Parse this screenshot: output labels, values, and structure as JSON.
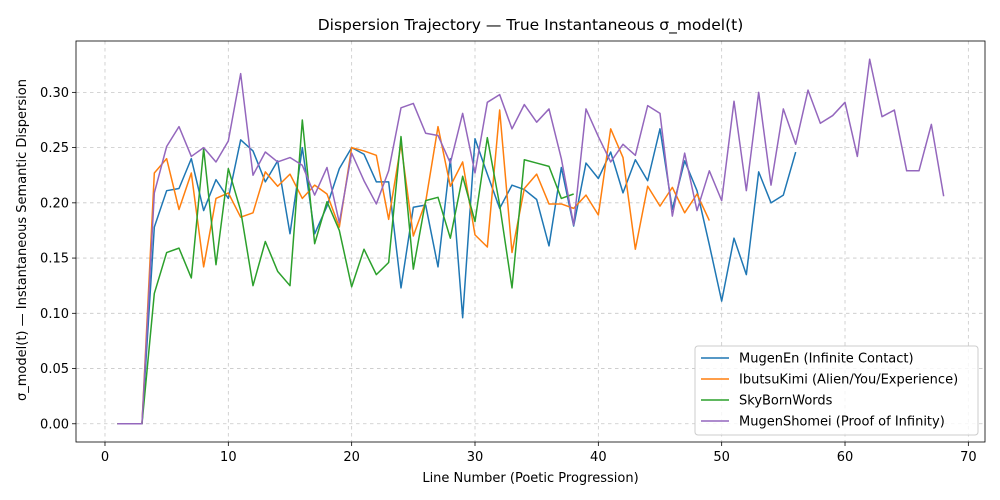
{
  "chart_data": {
    "type": "line",
    "title": "Dispersion Trajectory — True Instantaneous σ_model(t)",
    "xlabel": "Line Number (Poetic Progression)",
    "ylabel": "σ_model(t) — Instantaneous Semantic Dispersion",
    "xlim": [
      -2.35,
      71.35
    ],
    "ylim": [
      -0.0165,
      0.3465
    ],
    "xticks": [
      0,
      10,
      20,
      30,
      40,
      50,
      60,
      70
    ],
    "yticks": [
      0.0,
      0.05,
      0.1,
      0.15,
      0.2,
      0.25,
      0.3
    ],
    "ytick_labels": [
      "0.00",
      "0.05",
      "0.10",
      "0.15",
      "0.20",
      "0.25",
      "0.30"
    ],
    "grid": true,
    "legend_position": "lower-right",
    "series": [
      {
        "name": "MugenEn (Infinite Contact)",
        "color": "#1f77b4",
        "x": [
          1,
          2,
          3,
          4,
          5,
          6,
          7,
          8,
          9,
          10,
          11,
          12,
          13,
          14,
          15,
          16,
          17,
          18,
          19,
          20,
          21,
          22,
          23,
          24,
          25,
          26,
          27,
          28,
          29,
          30,
          31,
          32,
          33,
          34,
          35,
          36,
          37,
          38,
          39,
          40,
          41,
          42,
          43,
          44,
          45,
          46,
          47,
          48,
          49,
          50,
          51,
          52,
          53,
          54,
          55,
          56
        ],
        "y": [
          0.0,
          0.0,
          0.0,
          0.178,
          0.211,
          0.213,
          0.24,
          0.193,
          0.221,
          0.204,
          0.257,
          0.247,
          0.219,
          0.238,
          0.172,
          0.25,
          0.172,
          0.197,
          0.231,
          0.25,
          0.244,
          0.219,
          0.219,
          0.123,
          0.196,
          0.198,
          0.142,
          0.24,
          0.096,
          0.258,
          0.226,
          0.195,
          0.216,
          0.212,
          0.203,
          0.161,
          0.232,
          0.179,
          0.236,
          0.222,
          0.246,
          0.209,
          0.239,
          0.22,
          0.267,
          0.194,
          0.238,
          0.211,
          0.162,
          0.111,
          0.168,
          0.135,
          0.228,
          0.2,
          0.207,
          0.246
        ]
      },
      {
        "name": "IbutsuKimi (Alien/You/Experience)",
        "color": "#ff7f0e",
        "x": [
          1,
          2,
          3,
          4,
          5,
          6,
          7,
          8,
          9,
          10,
          11,
          12,
          13,
          14,
          15,
          16,
          17,
          18,
          19,
          20,
          21,
          22,
          23,
          24,
          25,
          26,
          27,
          28,
          29,
          30,
          31,
          32,
          33,
          34,
          35,
          36,
          37,
          38,
          39,
          40,
          41,
          42,
          43,
          44,
          45,
          46,
          47,
          48,
          49
        ],
        "y": [
          0.0,
          0.0,
          0.0,
          0.227,
          0.24,
          0.194,
          0.227,
          0.142,
          0.204,
          0.209,
          0.187,
          0.191,
          0.228,
          0.215,
          0.226,
          0.204,
          0.216,
          0.208,
          0.178,
          0.25,
          0.247,
          0.243,
          0.185,
          0.253,
          0.17,
          0.201,
          0.269,
          0.215,
          0.237,
          0.171,
          0.16,
          0.284,
          0.155,
          0.213,
          0.226,
          0.199,
          0.199,
          0.195,
          0.207,
          0.189,
          0.267,
          0.241,
          0.158,
          0.215,
          0.197,
          0.214,
          0.191,
          0.208,
          0.184
        ]
      },
      {
        "name": "SkyBornWords",
        "color": "#2ca02c",
        "x": [
          1,
          2,
          3,
          4,
          5,
          6,
          7,
          8,
          9,
          10,
          11,
          12,
          13,
          14,
          15,
          16,
          17,
          18,
          19,
          20,
          21,
          22,
          23,
          24,
          25,
          26,
          27,
          28,
          29,
          30,
          31,
          32,
          33,
          34,
          35,
          36,
          37,
          38
        ],
        "y": [
          0.0,
          0.0,
          0.0,
          0.118,
          0.155,
          0.159,
          0.132,
          0.249,
          0.144,
          0.231,
          0.193,
          0.125,
          0.165,
          0.138,
          0.125,
          0.275,
          0.163,
          0.201,
          0.175,
          0.124,
          0.158,
          0.135,
          0.146,
          0.26,
          0.14,
          0.202,
          0.205,
          0.168,
          0.224,
          0.183,
          0.259,
          0.198,
          0.123,
          0.239,
          0.236,
          0.233,
          0.204,
          0.208
        ]
      },
      {
        "name": "MugenShomei (Proof of Infinity)",
        "color": "#9467bd",
        "x": [
          1,
          2,
          3,
          4,
          5,
          6,
          7,
          8,
          9,
          10,
          11,
          12,
          13,
          14,
          15,
          16,
          17,
          18,
          19,
          20,
          21,
          22,
          23,
          24,
          25,
          26,
          27,
          28,
          29,
          30,
          31,
          32,
          33,
          34,
          35,
          36,
          37,
          38,
          39,
          40,
          41,
          42,
          43,
          44,
          45,
          46,
          47,
          48,
          49,
          50,
          51,
          52,
          53,
          54,
          55,
          56,
          57,
          58,
          59,
          60,
          61,
          62,
          63,
          64,
          65,
          66,
          67,
          68
        ],
        "y": [
          0.0,
          0.0,
          0.0,
          0.209,
          0.251,
          0.269,
          0.242,
          0.25,
          0.237,
          0.256,
          0.317,
          0.225,
          0.246,
          0.237,
          0.241,
          0.234,
          0.207,
          0.232,
          0.182,
          0.245,
          0.22,
          0.199,
          0.229,
          0.286,
          0.29,
          0.263,
          0.261,
          0.236,
          0.281,
          0.227,
          0.291,
          0.298,
          0.267,
          0.289,
          0.273,
          0.285,
          0.24,
          0.18,
          0.285,
          0.26,
          0.237,
          0.253,
          0.243,
          0.288,
          0.281,
          0.188,
          0.245,
          0.193,
          0.229,
          0.202,
          0.292,
          0.211,
          0.3,
          0.216,
          0.285,
          0.253,
          0.302,
          0.272,
          0.279,
          0.291,
          0.242,
          0.33,
          0.278,
          0.284,
          0.229,
          0.229,
          0.271,
          0.206
        ]
      }
    ]
  }
}
